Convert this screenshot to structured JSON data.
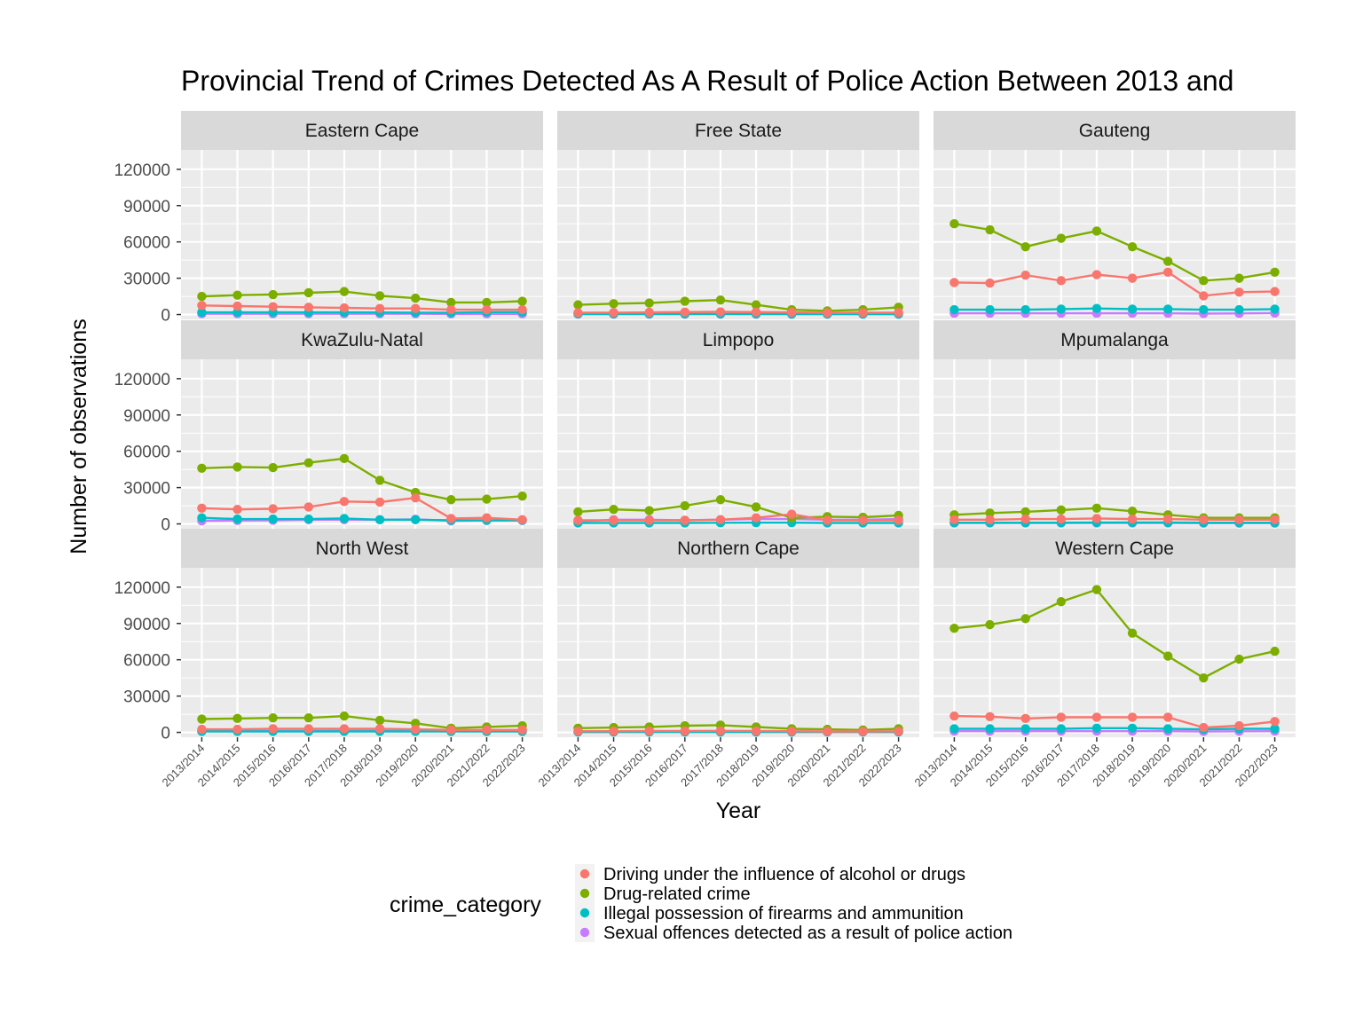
{
  "chart_data": {
    "type": "line",
    "title": "Provincial Trend of Crimes Detected As A Result of Police Action Between 2013 and",
    "xlabel": "Year",
    "ylabel": "Number of observations",
    "ylim": [
      -4000,
      136000
    ],
    "y_ticks": [
      0,
      30000,
      60000,
      90000,
      120000
    ],
    "y_tick_labels": [
      "0",
      "30000",
      "60000",
      "90000",
      "120000"
    ],
    "categories": [
      "2013/2014",
      "2014/2015",
      "2015/2016",
      "2016/2017",
      "2017/2018",
      "2018/2019",
      "2019/2020",
      "2020/2021",
      "2021/2022",
      "2022/2023"
    ],
    "grid": true,
    "legend": {
      "title": "crime_category",
      "position": "bottom",
      "entries": [
        {
          "name": "Driving under the influence of alcohol or drugs",
          "color": "#F8766D"
        },
        {
          "name": "Drug-related crime",
          "color": "#7CAE00"
        },
        {
          "name": "Illegal possession of firearms and ammunition",
          "color": "#00BFC4"
        },
        {
          "name": "Sexual offences detected as a result of police action",
          "color": "#C77CFF"
        }
      ]
    },
    "facets": [
      {
        "name": "Eastern Cape",
        "series": [
          {
            "name": "Driving under the influence of alcohol or drugs",
            "values": [
              7500,
              7000,
              6500,
              6000,
              5500,
              5000,
              5000,
              4000,
              4000,
              4000
            ]
          },
          {
            "name": "Drug-related crime",
            "values": [
              15000,
              16000,
              16500,
              18000,
              19000,
              15500,
              13500,
              10000,
              10000,
              11000
            ]
          },
          {
            "name": "Illegal possession of firearms and ammunition",
            "values": [
              1800,
              1800,
              1800,
              1800,
              1800,
              1700,
              1600,
              1500,
              2000,
              2000
            ]
          },
          {
            "name": "Sexual offences detected as a result of police action",
            "values": [
              600,
              600,
              600,
              600,
              600,
              600,
              600,
              500,
              500,
              500
            ]
          }
        ]
      },
      {
        "name": "Free State",
        "series": [
          {
            "name": "Driving under the influence of alcohol or drugs",
            "values": [
              1500,
              1600,
              1800,
              2000,
              2200,
              2000,
              1800,
              1400,
              1500,
              1600
            ]
          },
          {
            "name": "Drug-related crime",
            "values": [
              8000,
              9000,
              9500,
              11000,
              12000,
              8000,
              4000,
              3000,
              4000,
              6000
            ]
          },
          {
            "name": "Illegal possession of firearms and ammunition",
            "values": [
              500,
              500,
              500,
              500,
              500,
              500,
              400,
              400,
              400,
              400
            ]
          },
          {
            "name": "Sexual offences detected as a result of police action",
            "values": [
              300,
              300,
              300,
              300,
              300,
              300,
              300,
              300,
              300,
              300
            ]
          }
        ]
      },
      {
        "name": "Gauteng",
        "series": [
          {
            "name": "Driving under the influence of alcohol or drugs",
            "values": [
              26500,
              26000,
              32500,
              28000,
              33000,
              30000,
              35000,
              15500,
              18500,
              19000
            ]
          },
          {
            "name": "Drug-related crime",
            "values": [
              75000,
              70000,
              56000,
              63000,
              69000,
              56000,
              44000,
              28000,
              30000,
              35000
            ]
          },
          {
            "name": "Illegal possession of firearms and ammunition",
            "values": [
              4000,
              4000,
              4000,
              4500,
              5000,
              4500,
              4500,
              4000,
              4000,
              4500
            ]
          },
          {
            "name": "Sexual offences detected as a result of police action",
            "values": [
              1000,
              1000,
              1000,
              1000,
              1000,
              1000,
              1000,
              800,
              900,
              1200
            ]
          }
        ]
      },
      {
        "name": "KwaZulu-Natal",
        "series": [
          {
            "name": "Driving under the influence of alcohol or drugs",
            "values": [
              13000,
              12000,
              12500,
              14000,
              18500,
              18000,
              21500,
              4500,
              5000,
              3500
            ]
          },
          {
            "name": "Drug-related crime",
            "values": [
              46000,
              47000,
              46500,
              50500,
              54000,
              36000,
              26000,
              20000,
              20500,
              23000
            ]
          },
          {
            "name": "Illegal possession of firearms and ammunition",
            "values": [
              5000,
              4000,
              4000,
              4000,
              4500,
              3500,
              3500,
              3000,
              3000,
              3000
            ]
          },
          {
            "name": "Sexual offences detected as a result of police action",
            "values": [
              2500,
              2800,
              3000,
              3500,
              3500,
              3500,
              3800,
              2500,
              2800,
              2800
            ]
          }
        ]
      },
      {
        "name": "Limpopo",
        "series": [
          {
            "name": "Driving under the influence of alcohol or drugs",
            "values": [
              3000,
              3000,
              3000,
              3000,
              3500,
              5000,
              8000,
              3000,
              3000,
              3000
            ]
          },
          {
            "name": "Drug-related crime",
            "values": [
              10000,
              12000,
              11000,
              15000,
              20000,
              14000,
              5000,
              6000,
              5500,
              7000
            ]
          },
          {
            "name": "Illegal possession of firearms and ammunition",
            "values": [
              800,
              800,
              800,
              800,
              900,
              1000,
              1000,
              800,
              800,
              800
            ]
          },
          {
            "name": "Sexual offences detected as a result of police action",
            "values": [
              2000,
              3500,
              3500,
              3000,
              3500,
              4000,
              4000,
              3500,
              3500,
              4000
            ]
          }
        ]
      },
      {
        "name": "Mpumalanga",
        "series": [
          {
            "name": "Driving under the influence of alcohol or drugs",
            "values": [
              3500,
              3500,
              4000,
              4000,
              4500,
              4000,
              4000,
              3500,
              3500,
              3500
            ]
          },
          {
            "name": "Drug-related crime",
            "values": [
              7500,
              9000,
              10000,
              11500,
              13000,
              10500,
              7500,
              5000,
              5000,
              5000
            ]
          },
          {
            "name": "Illegal possession of firearms and ammunition",
            "values": [
              1000,
              1000,
              1000,
              1000,
              1200,
              1200,
              1200,
              1000,
              1000,
              1000
            ]
          },
          {
            "name": "Sexual offences detected as a result of police action",
            "values": [
              800,
              800,
              800,
              800,
              800,
              800,
              800,
              600,
              600,
              600
            ]
          }
        ]
      },
      {
        "name": "North West",
        "series": [
          {
            "name": "Driving under the influence of alcohol or drugs",
            "values": [
              2500,
              2500,
              3000,
              3000,
              3000,
              3000,
              2500,
              2000,
              2000,
              2000
            ]
          },
          {
            "name": "Drug-related crime",
            "values": [
              11000,
              11500,
              12000,
              12000,
              13500,
              10000,
              7500,
              3500,
              4500,
              5500
            ]
          },
          {
            "name": "Illegal possession of firearms and ammunition",
            "values": [
              800,
              800,
              800,
              800,
              800,
              800,
              800,
              700,
              700,
              700
            ]
          },
          {
            "name": "Sexual offences detected as a result of police action",
            "values": [
              1000,
              1000,
              1200,
              1200,
              1300,
              1300,
              1300,
              1000,
              1000,
              1200
            ]
          }
        ]
      },
      {
        "name": "Northern Cape",
        "series": [
          {
            "name": "Driving under the influence of alcohol or drugs",
            "values": [
              1000,
              1000,
              1200,
              1200,
              1300,
              1200,
              1000,
              800,
              800,
              900
            ]
          },
          {
            "name": "Drug-related crime",
            "values": [
              3500,
              4000,
              4500,
              5500,
              6000,
              4500,
              3000,
              2500,
              2000,
              3000
            ]
          },
          {
            "name": "Illegal possession of firearms and ammunition",
            "values": [
              300,
              300,
              300,
              300,
              300,
              300,
              300,
              300,
              300,
              300
            ]
          },
          {
            "name": "Sexual offences detected as a result of police action",
            "values": [
              300,
              300,
              300,
              300,
              300,
              300,
              300,
              300,
              300,
              300
            ]
          }
        ]
      },
      {
        "name": "Western Cape",
        "series": [
          {
            "name": "Driving under the influence of alcohol or drugs",
            "values": [
              13500,
              13000,
              11500,
              12500,
              12500,
              12500,
              12500,
              4000,
              5500,
              9000
            ]
          },
          {
            "name": "Drug-related crime",
            "values": [
              86000,
              89000,
              94000,
              108000,
              118000,
              82000,
              63000,
              45000,
              60500,
              67000
            ]
          },
          {
            "name": "Illegal possession of firearms and ammunition",
            "values": [
              3000,
              3000,
              3000,
              3000,
              3500,
              3500,
              3000,
              2500,
              3000,
              3000
            ]
          },
          {
            "name": "Sexual offences detected as a result of police action",
            "values": [
              1000,
              1000,
              1000,
              1000,
              1000,
              1000,
              1000,
              800,
              900,
              1000
            ]
          }
        ]
      }
    ]
  }
}
